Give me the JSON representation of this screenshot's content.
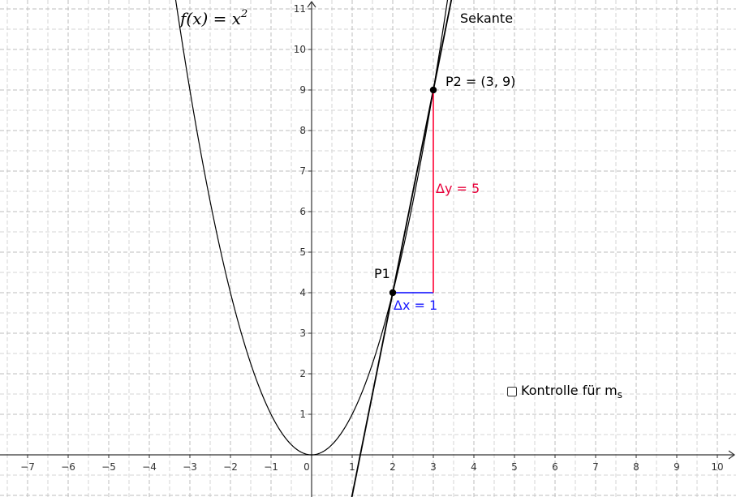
{
  "chart_data": {
    "type": "line",
    "xlim": [
      -7.6,
      10.5
    ],
    "ylim": [
      -1,
      11
    ],
    "grid": true,
    "x_ticks": [
      -7,
      -6,
      -5,
      -4,
      -3,
      -2,
      -1,
      0,
      1,
      2,
      3,
      4,
      5,
      6,
      7,
      8,
      9,
      10
    ],
    "y_ticks": [
      1,
      2,
      3,
      4,
      5,
      6,
      7,
      8,
      9,
      10,
      11
    ],
    "function": {
      "label_prefix": "f(x) = x",
      "label_exp": "2",
      "expression": "x^2"
    },
    "secant": {
      "label": "Sekante",
      "through": [
        [
          2,
          4
        ],
        [
          3,
          9
        ]
      ]
    },
    "points": [
      {
        "name": "P1",
        "label": "P1",
        "x": 2,
        "y": 4
      },
      {
        "name": "P2",
        "label": "P2 = (3, 9)",
        "x": 3,
        "y": 9
      }
    ],
    "delta_x": {
      "label": "Δx = 1",
      "from": [
        2,
        4
      ],
      "to": [
        3,
        4
      ],
      "color": "#0000ff"
    },
    "delta_y": {
      "label": "Δy = 5",
      "from": [
        3,
        4
      ],
      "to": [
        3,
        9
      ],
      "color": "#ff0033"
    }
  },
  "checkbox": {
    "label": "Kontrolle für m",
    "label_sub": "s",
    "checked": false
  }
}
